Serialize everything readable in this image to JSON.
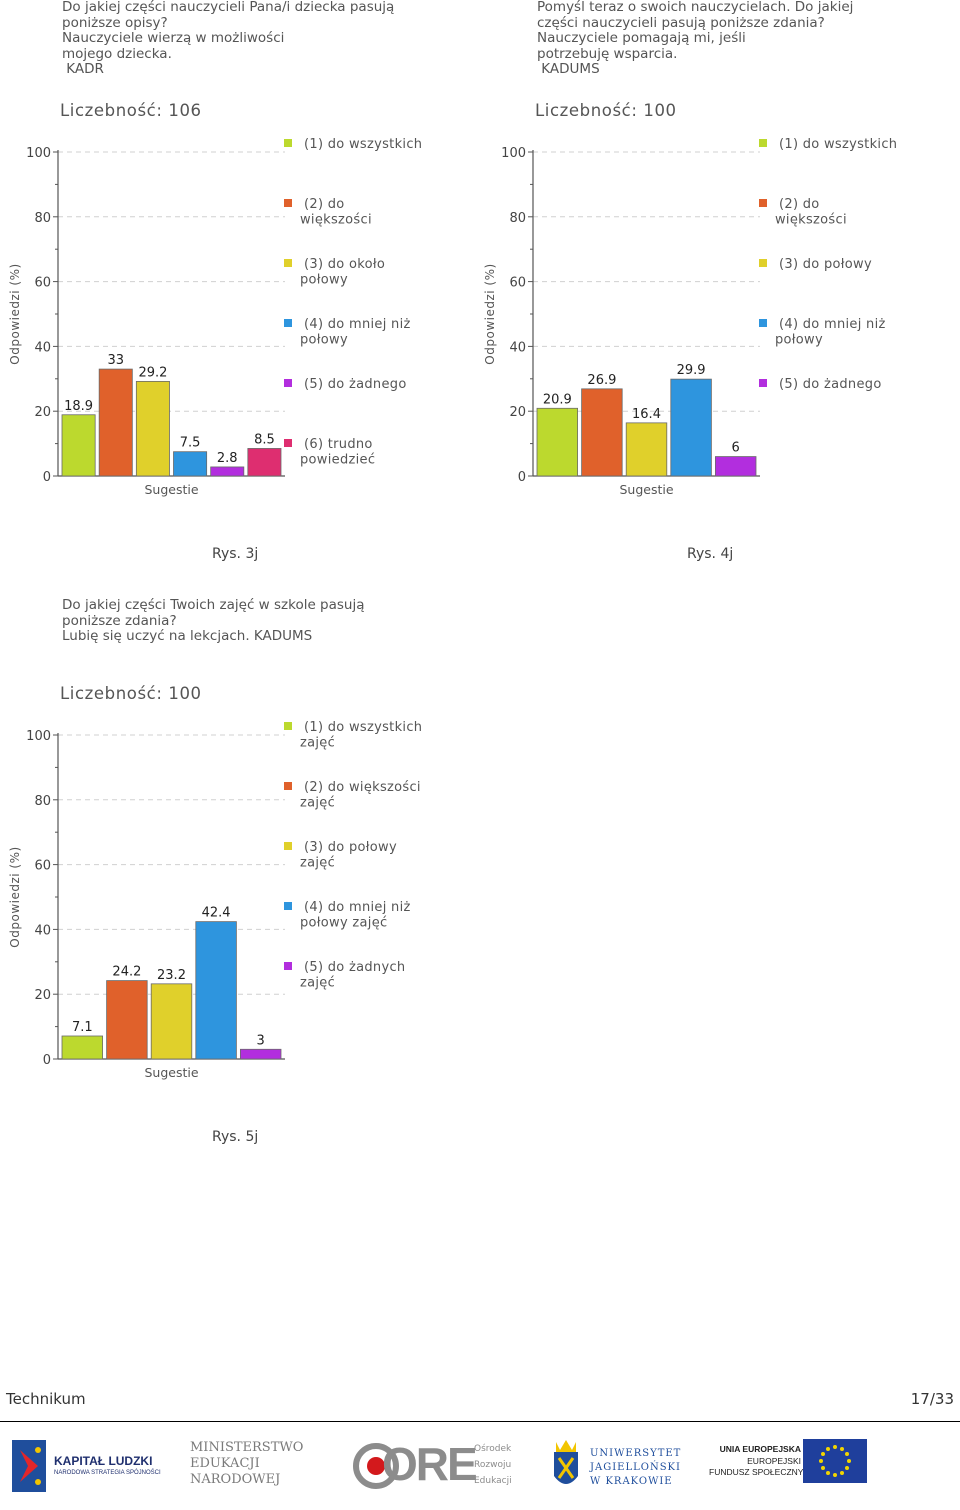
{
  "chart_data": [
    {
      "type": "bar",
      "figure_label": "Rys. 3j",
      "question": [
        "Do jakiej części nauczycieli Pana/i dziecka pasują",
        "poniższe opisy?",
        "Nauczyciele wierzą w możliwości",
        "mojego dziecka.",
        " KADR"
      ],
      "title": "Liczebność: 106",
      "xlabel": "Sugestie",
      "ylabel": "Odpowiedzi (%)",
      "ylim": [
        0,
        100
      ],
      "yticks": [
        0,
        20,
        40,
        60,
        80,
        100
      ],
      "legend_position": "right",
      "series": [
        {
          "name": [
            "(1) do wszystkich"
          ],
          "value": 18.9,
          "label": "18.9",
          "color": "#bcd92e"
        },
        {
          "name": [
            "(2) do",
            "większości"
          ],
          "value": 33,
          "label": "33",
          "color": "#e0612b"
        },
        {
          "name": [
            "(3) do około",
            "połowy"
          ],
          "value": 29.2,
          "label": "29.2",
          "color": "#e0d02b"
        },
        {
          "name": [
            "(4) do mniej niż",
            "połowy"
          ],
          "value": 7.5,
          "label": "7.5",
          "color": "#2e95de"
        },
        {
          "name": [
            "(5) do żadnego"
          ],
          "value": 2.8,
          "label": "2.8",
          "color": "#b22ede"
        },
        {
          "name": [
            "(6) trudno",
            "powiedzieć"
          ],
          "value": 8.5,
          "label": "8.5",
          "color": "#de2e70"
        }
      ]
    },
    {
      "type": "bar",
      "figure_label": "Rys. 4j",
      "question": [
        "Pomyśl teraz o swoich nauczycielach. Do jakiej",
        "części nauczycieli pasują poniższe zdania?",
        "Nauczyciele pomagają mi, jeśli",
        "potrzebuję wsparcia.",
        " KADUMS"
      ],
      "title": "Liczebność: 100",
      "xlabel": "Sugestie",
      "ylabel": "Odpowiedzi (%)",
      "ylim": [
        0,
        100
      ],
      "yticks": [
        0,
        20,
        40,
        60,
        80,
        100
      ],
      "legend_position": "right",
      "series": [
        {
          "name": [
            "(1) do wszystkich"
          ],
          "value": 20.9,
          "label": "20.9",
          "color": "#bcd92e"
        },
        {
          "name": [
            "(2) do",
            "większości"
          ],
          "value": 26.9,
          "label": "26.9",
          "color": "#e0612b"
        },
        {
          "name": [
            "(3) do połowy"
          ],
          "value": 16.4,
          "label": "16.4",
          "color": "#e0d02b"
        },
        {
          "name": [
            "(4) do mniej niż",
            "połowy"
          ],
          "value": 29.9,
          "label": "29.9",
          "color": "#2e95de"
        },
        {
          "name": [
            "(5) do żadnego"
          ],
          "value": 6,
          "label": "6",
          "color": "#b22ede"
        }
      ]
    },
    {
      "type": "bar",
      "figure_label": "Rys. 5j",
      "question": [
        "Do jakiej części Twoich zajęć w szkole pasują",
        "poniższe zdania?",
        "Lubię się uczyć na lekcjach. KADUMS"
      ],
      "title": "Liczebność: 100",
      "xlabel": "Sugestie",
      "ylabel": "Odpowiedzi (%)",
      "ylim": [
        0,
        100
      ],
      "yticks": [
        0,
        20,
        40,
        60,
        80,
        100
      ],
      "legend_position": "right",
      "series": [
        {
          "name": [
            "(1) do wszystkich",
            "zajęć"
          ],
          "value": 7.1,
          "label": "7.1",
          "color": "#bcd92e"
        },
        {
          "name": [
            "(2) do większości",
            "zajęć"
          ],
          "value": 24.2,
          "label": "24.2",
          "color": "#e0612b"
        },
        {
          "name": [
            "(3) do połowy",
            "zajęć"
          ],
          "value": 23.2,
          "label": "23.2",
          "color": "#e0d02b"
        },
        {
          "name": [
            "(4) do mniej niż",
            "połowy zajęć"
          ],
          "value": 42.4,
          "label": "42.4",
          "color": "#2e95de"
        },
        {
          "name": [
            "(5) do żadnych",
            "zajęć"
          ],
          "value": 3,
          "label": "3",
          "color": "#b22ede"
        }
      ]
    }
  ],
  "footer": {
    "left": "Technikum",
    "right": "17/33"
  },
  "logos": {
    "kapital": {
      "line1": "KAPITAŁ LUDZKI",
      "line2": "NARODOWA STRATEGIA SPÓJNOŚCI"
    },
    "men": [
      "MINISTERSTWO",
      "EDUKACJI",
      "NARODOWEJ"
    ],
    "ore": {
      "mark": "ORE",
      "lines": [
        "Ośrodek",
        "Rozwoju",
        "Edukacji"
      ]
    },
    "uj": [
      "UNIWERSYTET",
      "JAGIELLOŃSKI",
      "W KRAKOWIE"
    ],
    "ue": [
      "UNIA EUROPEJSKA",
      "EUROPEJSKI",
      "FUNDUSZ SPOŁECZNY"
    ]
  }
}
